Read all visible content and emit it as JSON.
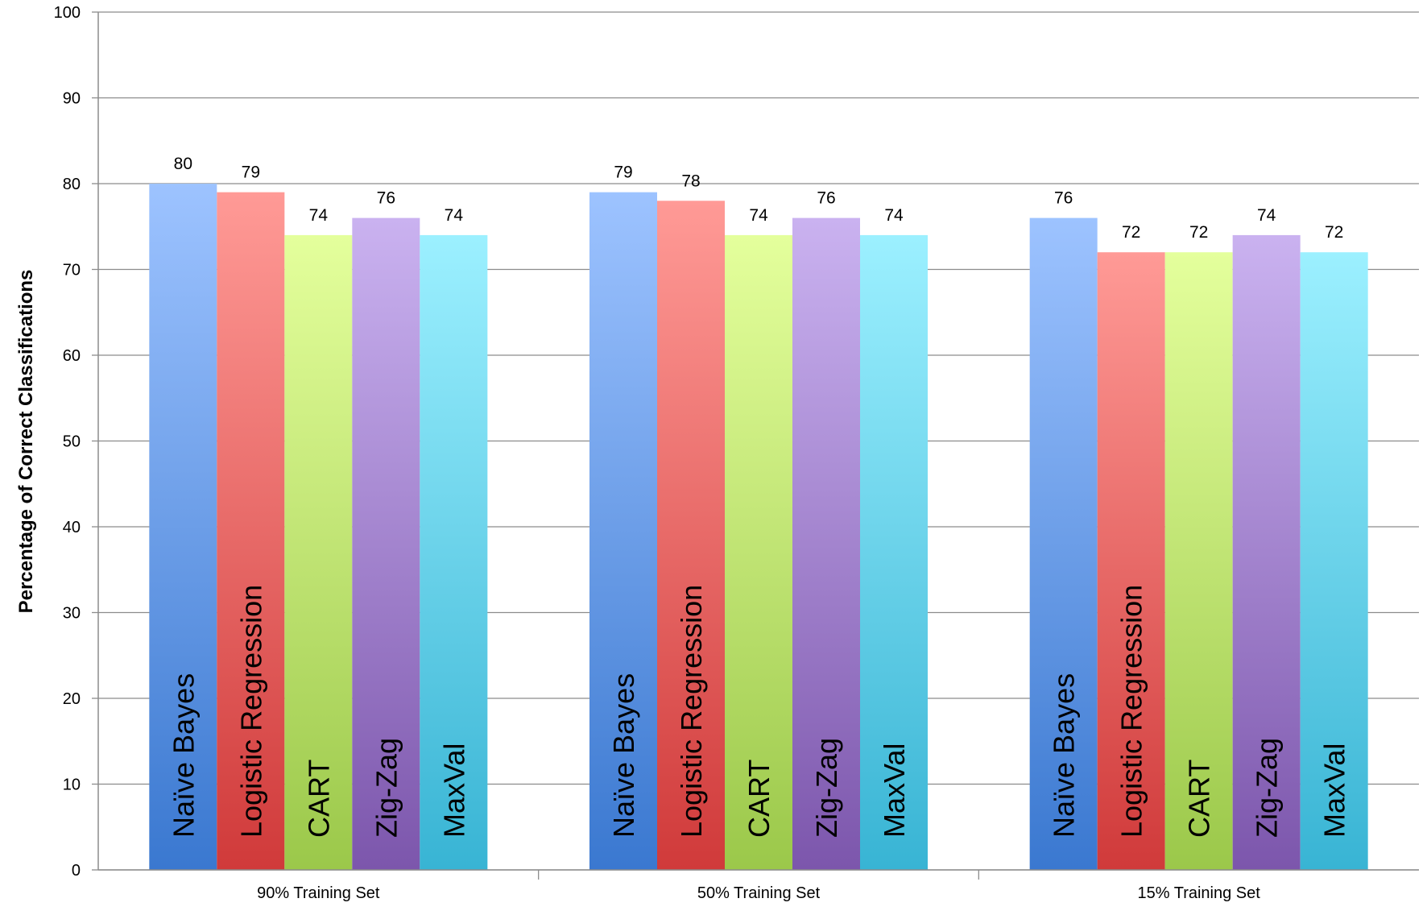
{
  "chart_data": {
    "type": "bar",
    "categories": [
      "90% Training Set",
      "50% Training Set",
      "15% Training Set"
    ],
    "series": [
      {
        "name": "Naïve Bayes",
        "values": [
          80,
          79,
          76
        ],
        "color_top": "#9dc3ff",
        "color_bottom": "#3a78d0"
      },
      {
        "name": "Logistic Regression",
        "values": [
          79,
          78,
          72
        ],
        "color_top": "#ff9a96",
        "color_bottom": "#d03a3a"
      },
      {
        "name": "CART",
        "values": [
          74,
          74,
          72
        ],
        "color_top": "#e4ff9c",
        "color_bottom": "#9bc84a"
      },
      {
        "name": "Zig-Zag",
        "values": [
          76,
          76,
          74
        ],
        "color_top": "#cab2f0",
        "color_bottom": "#7c56ac"
      },
      {
        "name": "MaxVal",
        "values": [
          74,
          74,
          72
        ],
        "color_top": "#9cf0ff",
        "color_bottom": "#38b4d4"
      }
    ],
    "title": "",
    "xlabel": "",
    "ylabel": "Percentage of Correct Classifications",
    "ylim": [
      0,
      100
    ],
    "yticks": [
      0,
      10,
      20,
      30,
      40,
      50,
      60,
      70,
      80,
      90,
      100
    ],
    "grid": true,
    "legend": "none (series names printed vertically inside bars)"
  }
}
